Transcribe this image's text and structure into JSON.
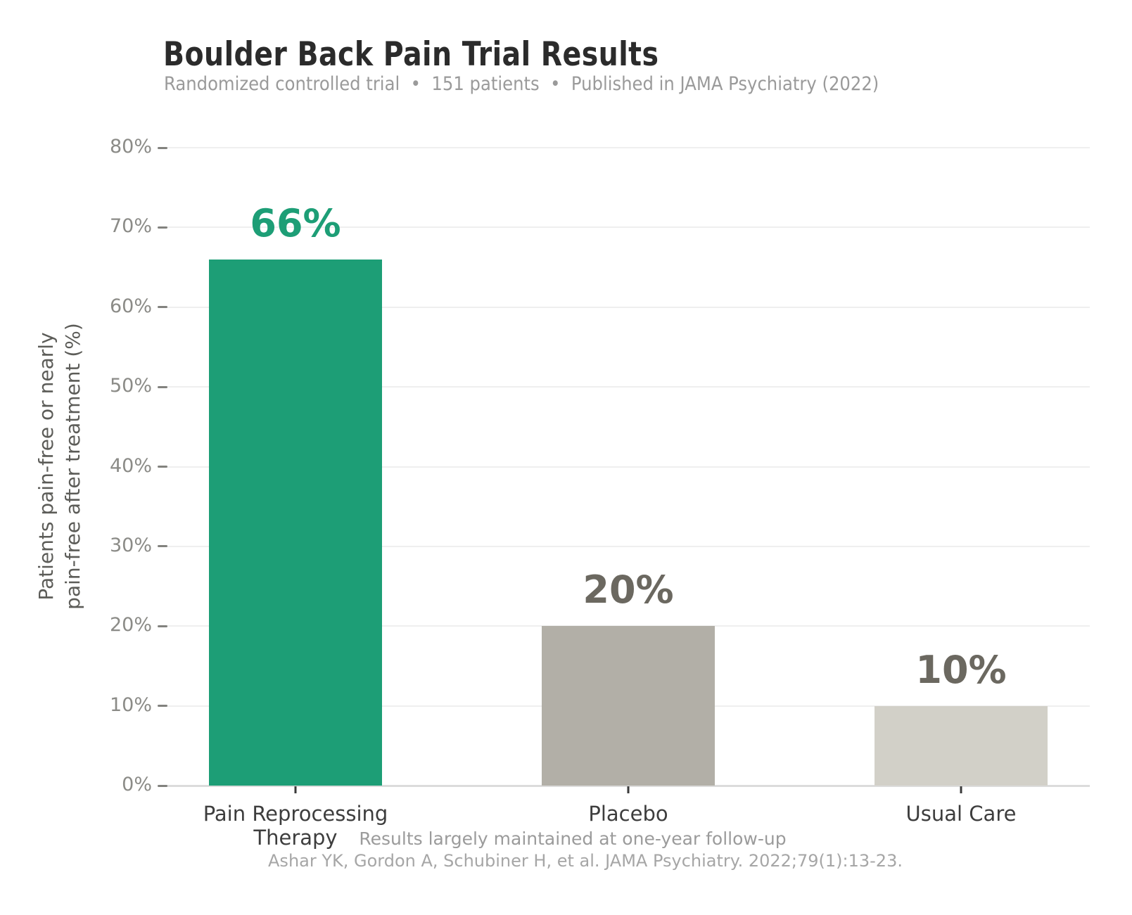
{
  "header": {
    "title": "Boulder Back Pain Trial Results",
    "subtitle": "Randomized controlled trial  •  151 patients  •  Published in JAMA Psychiatry (2022)"
  },
  "chart_data": {
    "type": "bar",
    "title": "Boulder Back Pain Trial Results",
    "subtitle": "Randomized controlled trial • 151 patients • Published in JAMA Psychiatry (2022)",
    "categories": [
      "Pain Reprocessing\nTherapy",
      "Placebo",
      "Usual Care"
    ],
    "values": [
      66,
      20,
      10
    ],
    "value_labels": [
      "66%",
      "20%",
      "10%"
    ],
    "bar_colors": [
      "#1d9e76",
      "#b2afa7",
      "#d2d0c8"
    ],
    "value_label_colors": [
      "#1d9e76",
      "#6b6860",
      "#6b6860"
    ],
    "ylabel": "Patients pain-free or nearly\npain-free after treatment (%)",
    "xlabel": "",
    "ylim": [
      0,
      80
    ],
    "yticks": [
      0,
      10,
      20,
      30,
      40,
      50,
      60,
      70,
      80
    ],
    "ytick_labels": [
      "0%",
      "10%",
      "20%",
      "30%",
      "40%",
      "50%",
      "60%",
      "70%",
      "80%"
    ],
    "grid": "horizontal-light",
    "legend": "none"
  },
  "footer": {
    "note": "Results largely maintained at one-year follow-up",
    "citation": "Ashar YK, Gordon A, Schubiner H, et al. JAMA Psychiatry. 2022;79(1):13-23."
  }
}
